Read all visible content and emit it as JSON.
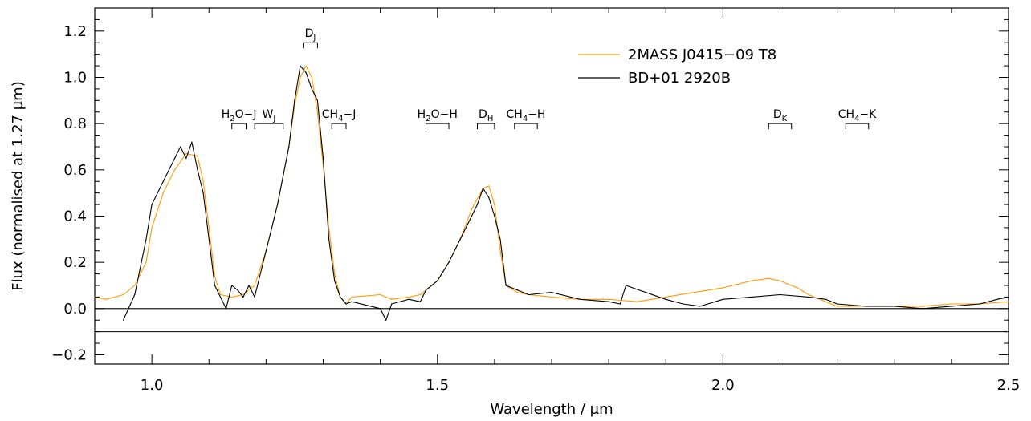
{
  "chart_data": {
    "type": "line",
    "title": "",
    "xlabel": "Wavelength / μm",
    "ylabel": "Flux (normalised at 1.27 μm)",
    "xlim": [
      0.9,
      2.5
    ],
    "ylim": [
      -0.24,
      1.3
    ],
    "x_ticks": [
      1.0,
      1.5,
      2.0,
      2.5
    ],
    "x_tick_labels": [
      "1.0",
      "1.5",
      "2.0",
      "2.5"
    ],
    "y_ticks": [
      -0.2,
      0.0,
      0.2,
      0.4,
      0.6,
      0.8,
      1.0,
      1.2
    ],
    "y_tick_labels": [
      "−0.2",
      "0.0",
      "0.2",
      "0.4",
      "0.6",
      "0.8",
      "1.0",
      "1.2"
    ],
    "grid": false,
    "legend_position": "top-right",
    "reference_lines": [
      0.0,
      -0.1
    ],
    "series": [
      {
        "name": "2MASS J0415−09 T8",
        "color": "#ff9a00",
        "x": [
          0.9,
          0.92,
          0.95,
          0.97,
          0.99,
          1.0,
          1.02,
          1.04,
          1.06,
          1.08,
          1.09,
          1.1,
          1.11,
          1.12,
          1.14,
          1.16,
          1.18,
          1.2,
          1.22,
          1.24,
          1.25,
          1.26,
          1.27,
          1.28,
          1.29,
          1.3,
          1.31,
          1.32,
          1.33,
          1.34,
          1.35,
          1.4,
          1.42,
          1.45,
          1.47,
          1.5,
          1.52,
          1.54,
          1.56,
          1.58,
          1.59,
          1.6,
          1.61,
          1.62,
          1.64,
          1.66,
          1.7,
          1.75,
          1.8,
          1.85,
          1.9,
          1.95,
          2.0,
          2.05,
          2.08,
          2.1,
          2.13,
          2.15,
          2.18,
          2.2,
          2.25,
          2.3,
          2.35,
          2.4,
          2.45,
          2.5
        ],
        "y": [
          0.05,
          0.04,
          0.06,
          0.1,
          0.2,
          0.35,
          0.5,
          0.6,
          0.67,
          0.66,
          0.55,
          0.35,
          0.14,
          0.06,
          0.05,
          0.06,
          0.1,
          0.25,
          0.45,
          0.7,
          0.88,
          1.0,
          1.05,
          1.0,
          0.85,
          0.62,
          0.35,
          0.15,
          0.05,
          0.02,
          0.05,
          0.06,
          0.04,
          0.05,
          0.06,
          0.12,
          0.2,
          0.3,
          0.43,
          0.52,
          0.53,
          0.45,
          0.25,
          0.1,
          0.07,
          0.06,
          0.05,
          0.04,
          0.04,
          0.03,
          0.05,
          0.07,
          0.09,
          0.12,
          0.13,
          0.12,
          0.09,
          0.06,
          0.03,
          0.01,
          0.01,
          0.01,
          0.01,
          0.02,
          0.02,
          0.03
        ]
      },
      {
        "name": "BD+01 2920B",
        "color": "#000000",
        "x": [
          0.95,
          0.97,
          0.99,
          1.0,
          1.02,
          1.04,
          1.05,
          1.06,
          1.07,
          1.08,
          1.09,
          1.1,
          1.11,
          1.12,
          1.13,
          1.14,
          1.15,
          1.16,
          1.17,
          1.18,
          1.2,
          1.22,
          1.24,
          1.25,
          1.26,
          1.27,
          1.28,
          1.29,
          1.3,
          1.31,
          1.32,
          1.33,
          1.34,
          1.35,
          1.4,
          1.41,
          1.42,
          1.45,
          1.47,
          1.48,
          1.5,
          1.52,
          1.54,
          1.56,
          1.57,
          1.58,
          1.59,
          1.6,
          1.61,
          1.62,
          1.64,
          1.66,
          1.7,
          1.75,
          1.8,
          1.82,
          1.83,
          1.9,
          1.93,
          1.96,
          2.0,
          2.05,
          2.1,
          2.15,
          2.18,
          2.2,
          2.25,
          2.3,
          2.35,
          2.4,
          2.45,
          2.48,
          2.5
        ],
        "y": [
          -0.05,
          0.06,
          0.3,
          0.45,
          0.55,
          0.65,
          0.7,
          0.65,
          0.72,
          0.6,
          0.5,
          0.3,
          0.1,
          0.05,
          0.0,
          0.1,
          0.08,
          0.05,
          0.1,
          0.05,
          0.25,
          0.45,
          0.7,
          0.9,
          1.05,
          1.02,
          0.95,
          0.9,
          0.65,
          0.3,
          0.12,
          0.05,
          0.02,
          0.03,
          0.0,
          -0.05,
          0.02,
          0.04,
          0.03,
          0.08,
          0.12,
          0.2,
          0.3,
          0.4,
          0.45,
          0.52,
          0.48,
          0.4,
          0.3,
          0.1,
          0.08,
          0.06,
          0.07,
          0.04,
          0.03,
          0.02,
          0.1,
          0.04,
          0.02,
          0.01,
          0.04,
          0.05,
          0.06,
          0.05,
          0.04,
          0.02,
          0.01,
          0.01,
          0.0,
          0.01,
          0.02,
          0.04,
          0.05
        ]
      }
    ],
    "annotations": [
      {
        "label_main": "D",
        "label_sub": "J",
        "x1": 1.265,
        "x2": 1.29,
        "y": 1.15
      },
      {
        "label_main": "H",
        "label_sub": "2",
        "label_rest": "O−J",
        "x1": 1.14,
        "x2": 1.165,
        "y": 0.8
      },
      {
        "label_main": "W",
        "label_sub": "J",
        "x1": 1.18,
        "x2": 1.23,
        "y": 0.8
      },
      {
        "label_main": "CH",
        "label_sub": "4",
        "label_rest": "−J",
        "x1": 1.315,
        "x2": 1.34,
        "y": 0.8
      },
      {
        "label_main": "H",
        "label_sub": "2",
        "label_rest": "O−H",
        "x1": 1.48,
        "x2": 1.52,
        "y": 0.8
      },
      {
        "label_main": "D",
        "label_sub": "H",
        "x1": 1.57,
        "x2": 1.6,
        "y": 0.8
      },
      {
        "label_main": "CH",
        "label_sub": "4",
        "label_rest": "−H",
        "x1": 1.635,
        "x2": 1.675,
        "y": 0.8
      },
      {
        "label_main": "D",
        "label_sub": "K",
        "x1": 2.08,
        "x2": 2.12,
        "y": 0.8
      },
      {
        "label_main": "CH",
        "label_sub": "4",
        "label_rest": "−K",
        "x1": 2.215,
        "x2": 2.255,
        "y": 0.8
      }
    ]
  }
}
